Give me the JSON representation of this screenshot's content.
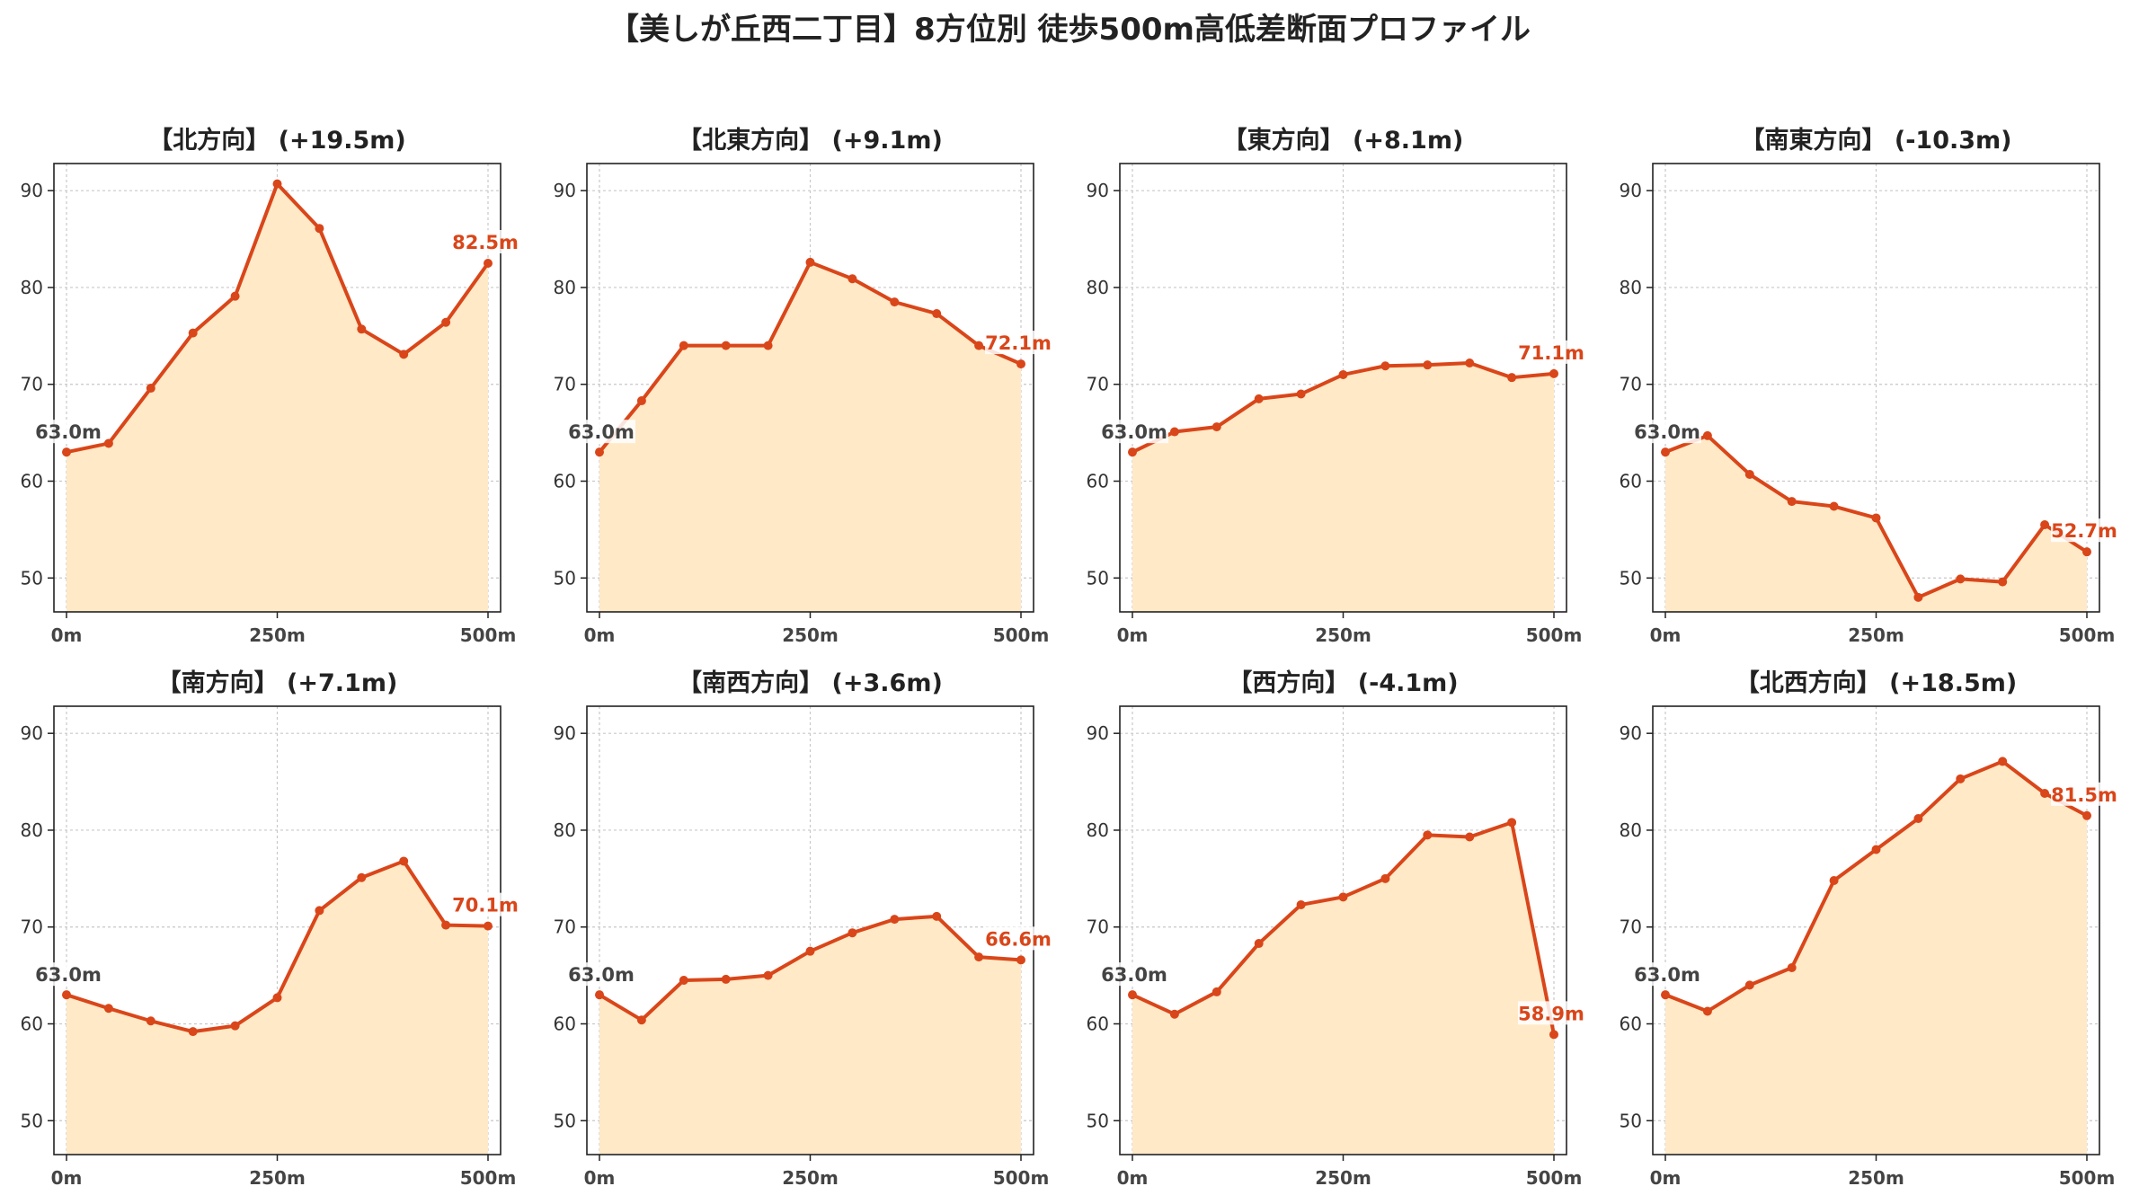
{
  "figure": {
    "suptitle": "【美しが丘西二丁目】8方位別 徒歩500m高低差断面プロファイル"
  },
  "colors": {
    "line": "#d9461a",
    "fill": "#ffe9c7",
    "start_label": "#444444",
    "end_label": "#d9461a",
    "grid": "#c8c8c8"
  },
  "chart_data": [
    {
      "type": "area",
      "title": "【北方向】 (+19.5m)",
      "x": [
        0,
        50,
        100,
        150,
        200,
        250,
        300,
        350,
        400,
        450,
        500
      ],
      "y": [
        63.0,
        63.9,
        69.6,
        75.3,
        79.1,
        90.7,
        86.1,
        75.7,
        73.1,
        76.4,
        82.5
      ],
      "start_label": "63.0m",
      "end_label": "82.5m",
      "xticks": [
        "0m",
        "250m",
        "500m"
      ],
      "yticks": [
        50,
        60,
        70,
        80,
        90
      ],
      "ylim": [
        46.5,
        92.8
      ],
      "grid": true
    },
    {
      "type": "area",
      "title": "【北東方向】 (+9.1m)",
      "x": [
        0,
        50,
        100,
        150,
        200,
        250,
        300,
        350,
        400,
        450,
        500
      ],
      "y": [
        63.0,
        68.3,
        74.0,
        74.0,
        74.0,
        82.6,
        80.9,
        78.5,
        77.3,
        74.0,
        72.1
      ],
      "start_label": "63.0m",
      "end_label": "72.1m",
      "xticks": [
        "0m",
        "250m",
        "500m"
      ],
      "yticks": [
        50,
        60,
        70,
        80,
        90
      ],
      "ylim": [
        46.5,
        92.8
      ],
      "grid": true
    },
    {
      "type": "area",
      "title": "【東方向】 (+8.1m)",
      "x": [
        0,
        50,
        100,
        150,
        200,
        250,
        300,
        350,
        400,
        450,
        500
      ],
      "y": [
        63.0,
        65.1,
        65.6,
        68.5,
        69.0,
        71.0,
        71.9,
        72.0,
        72.2,
        70.7,
        71.1
      ],
      "start_label": "63.0m",
      "end_label": "71.1m",
      "xticks": [
        "0m",
        "250m",
        "500m"
      ],
      "yticks": [
        50,
        60,
        70,
        80,
        90
      ],
      "ylim": [
        46.5,
        92.8
      ],
      "grid": true
    },
    {
      "type": "area",
      "title": "【南東方向】 (-10.3m)",
      "x": [
        0,
        50,
        100,
        150,
        200,
        250,
        300,
        350,
        400,
        450,
        500
      ],
      "y": [
        63.0,
        64.7,
        60.7,
        57.9,
        57.4,
        56.2,
        48.0,
        49.9,
        49.6,
        55.5,
        52.7
      ],
      "start_label": "63.0m",
      "end_label": "52.7m",
      "xticks": [
        "0m",
        "250m",
        "500m"
      ],
      "yticks": [
        50,
        60,
        70,
        80,
        90
      ],
      "ylim": [
        46.5,
        92.8
      ],
      "grid": true
    },
    {
      "type": "area",
      "title": "【南方向】 (+7.1m)",
      "x": [
        0,
        50,
        100,
        150,
        200,
        250,
        300,
        350,
        400,
        450,
        500
      ],
      "y": [
        63.0,
        61.6,
        60.3,
        59.2,
        59.8,
        62.7,
        71.7,
        75.1,
        76.8,
        70.2,
        70.1
      ],
      "start_label": "63.0m",
      "end_label": "70.1m",
      "xticks": [
        "0m",
        "250m",
        "500m"
      ],
      "yticks": [
        50,
        60,
        70,
        80,
        90
      ],
      "ylim": [
        46.5,
        92.8
      ],
      "grid": true
    },
    {
      "type": "area",
      "title": "【南西方向】 (+3.6m)",
      "x": [
        0,
        50,
        100,
        150,
        200,
        250,
        300,
        350,
        400,
        450,
        500
      ],
      "y": [
        63.0,
        60.4,
        64.5,
        64.6,
        65.0,
        67.5,
        69.4,
        70.8,
        71.1,
        66.9,
        66.6
      ],
      "start_label": "63.0m",
      "end_label": "66.6m",
      "xticks": [
        "0m",
        "250m",
        "500m"
      ],
      "yticks": [
        50,
        60,
        70,
        80,
        90
      ],
      "ylim": [
        46.5,
        92.8
      ],
      "grid": true
    },
    {
      "type": "area",
      "title": "【西方向】 (-4.1m)",
      "x": [
        0,
        50,
        100,
        150,
        200,
        250,
        300,
        350,
        400,
        450,
        500
      ],
      "y": [
        63.0,
        61.0,
        63.3,
        68.3,
        72.3,
        73.1,
        75.0,
        79.5,
        79.3,
        80.8,
        58.9
      ],
      "start_label": "63.0m",
      "end_label": "58.9m",
      "xticks": [
        "0m",
        "250m",
        "500m"
      ],
      "yticks": [
        50,
        60,
        70,
        80,
        90
      ],
      "ylim": [
        46.5,
        92.8
      ],
      "grid": true
    },
    {
      "type": "area",
      "title": "【北西方向】 (+18.5m)",
      "x": [
        0,
        50,
        100,
        150,
        200,
        250,
        300,
        350,
        400,
        450,
        500
      ],
      "y": [
        63.0,
        61.3,
        64.0,
        65.8,
        74.8,
        78.0,
        81.2,
        85.3,
        87.1,
        83.8,
        81.5
      ],
      "start_label": "63.0m",
      "end_label": "81.5m",
      "xticks": [
        "0m",
        "250m",
        "500m"
      ],
      "yticks": [
        50,
        60,
        70,
        80,
        90
      ],
      "ylim": [
        46.5,
        92.8
      ],
      "grid": true
    }
  ]
}
